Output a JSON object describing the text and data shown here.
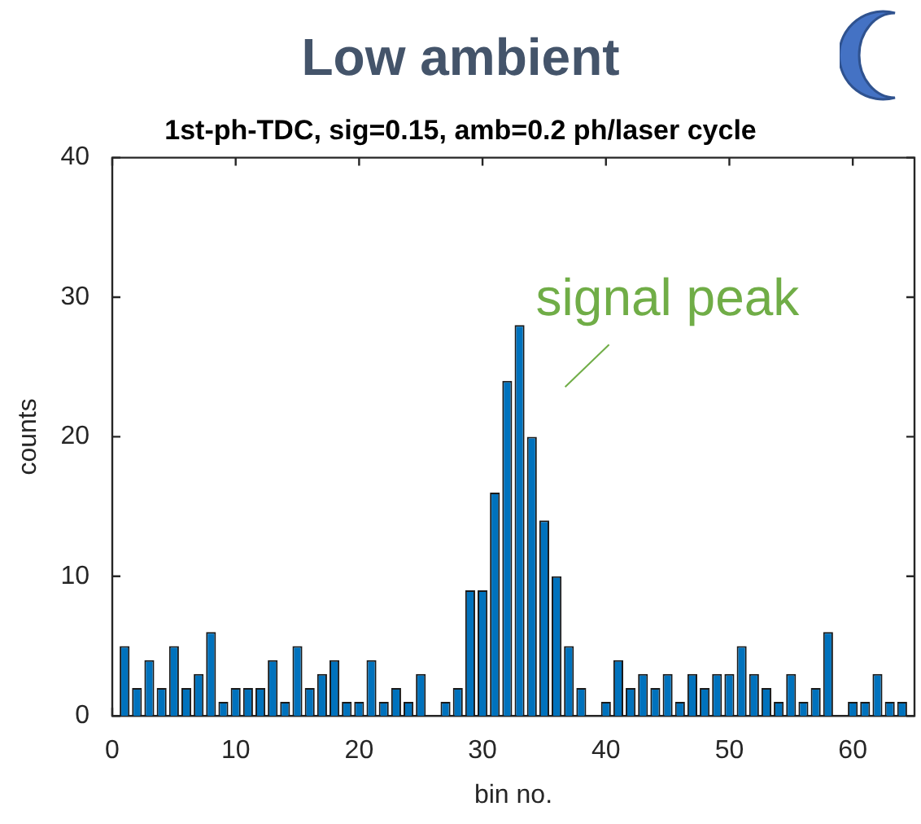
{
  "chart_data": {
    "type": "bar",
    "title": "Low ambient",
    "subtitle": "1st-ph-TDC, sig=0.15, amb=0.2 ph/laser cycle",
    "xlabel": "bin no.",
    "ylabel": "counts",
    "x": [
      1,
      2,
      3,
      4,
      5,
      6,
      7,
      8,
      9,
      10,
      11,
      12,
      13,
      14,
      15,
      16,
      17,
      18,
      19,
      20,
      21,
      22,
      23,
      24,
      25,
      26,
      27,
      28,
      29,
      30,
      31,
      32,
      33,
      34,
      35,
      36,
      37,
      38,
      39,
      40,
      41,
      42,
      43,
      44,
      45,
      46,
      47,
      48,
      49,
      50,
      51,
      52,
      53,
      54,
      55,
      56,
      57,
      58,
      59,
      60,
      61,
      62,
      63,
      64
    ],
    "values": [
      5,
      2,
      4,
      2,
      5,
      2,
      3,
      6,
      1,
      2,
      2,
      2,
      4,
      1,
      5,
      2,
      3,
      4,
      1,
      1,
      4,
      1,
      2,
      1,
      3,
      0,
      1,
      2,
      9,
      9,
      16,
      24,
      28,
      20,
      14,
      10,
      5,
      2,
      0,
      1,
      4,
      2,
      3,
      2,
      3,
      1,
      3,
      2,
      3,
      3,
      5,
      3,
      2,
      1,
      3,
      1,
      2,
      6,
      0,
      1,
      1,
      3,
      1,
      1
    ],
    "color": "#0072bd",
    "xlim": [
      0,
      65
    ],
    "xticks": [
      0,
      10,
      20,
      30,
      40,
      50,
      60
    ],
    "ylim": [
      0,
      40
    ],
    "yticks": [
      0,
      10,
      20,
      30,
      40
    ],
    "annotations": [
      {
        "text": "signal peak",
        "x": 33,
        "y": 28
      }
    ]
  }
}
